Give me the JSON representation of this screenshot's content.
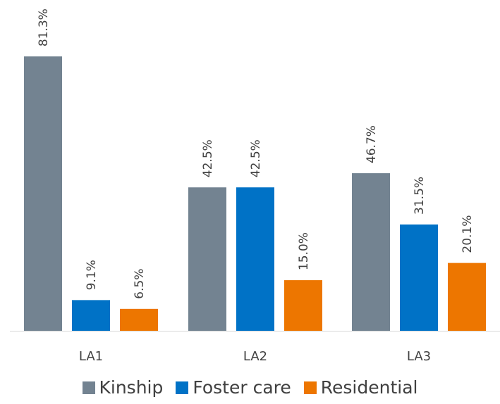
{
  "chart_data": {
    "type": "bar",
    "title": "",
    "categories": [
      "LA1",
      "LA2",
      "LA3"
    ],
    "series": [
      {
        "name": "Kinship",
        "values": [
          81.3,
          42.5,
          46.7
        ],
        "labels": [
          "81.3%",
          "42.5%",
          "46.7%"
        ],
        "color": "#738391"
      },
      {
        "name": "Foster care",
        "values": [
          9.1,
          42.5,
          31.5
        ],
        "labels": [
          "9.1%",
          "42.5%",
          "31.5%"
        ],
        "color": "#0072C6"
      },
      {
        "name": "Residential",
        "values": [
          6.5,
          15.0,
          20.1
        ],
        "labels": [
          "6.5%",
          "15.0%",
          "20.1%"
        ],
        "color": "#ED7600"
      }
    ],
    "ylim": [
      0,
      100
    ],
    "grid": false,
    "legend_position": "bottom"
  }
}
